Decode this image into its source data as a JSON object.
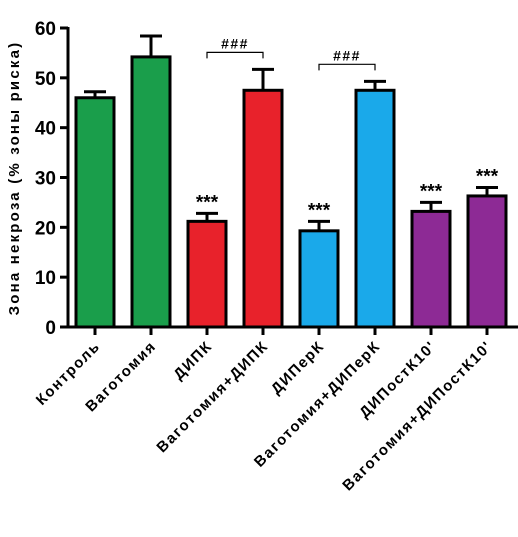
{
  "chart_data": {
    "type": "bar",
    "ylabel": "Зона некроза (% зоны риска)",
    "xlabel": "",
    "ylim": [
      0,
      60
    ],
    "yticks": [
      "0",
      "10",
      "20",
      "30",
      "40",
      "50",
      "60"
    ],
    "categories": [
      "Контроль",
      "Ваготомия",
      "ДИПК",
      "Ваготомия+ДИПК",
      "ДИПерК",
      "Ваготомия+ДИПерК",
      "ДИПостК10'",
      "Ваготомия+ДИПостК10'"
    ],
    "values": [
      46,
      54.2,
      21.2,
      47.5,
      19.3,
      47.5,
      23.2,
      26.3
    ],
    "errors": [
      1.2,
      4.2,
      1.6,
      4.2,
      1.9,
      1.8,
      1.8,
      1.7
    ],
    "colors": [
      "#1a9e4b",
      "#1a9e4b",
      "#e8222b",
      "#e8222b",
      "#1aa9ea",
      "#1aa9ea",
      "#8d2a95",
      "#8d2a95"
    ],
    "annotations": [
      "",
      "",
      "***",
      "",
      "***",
      "",
      "***",
      "***"
    ],
    "brackets": [
      {
        "from": 2,
        "to": 3,
        "label": "###"
      },
      {
        "from": 4,
        "to": 5,
        "label": "###"
      }
    ]
  }
}
